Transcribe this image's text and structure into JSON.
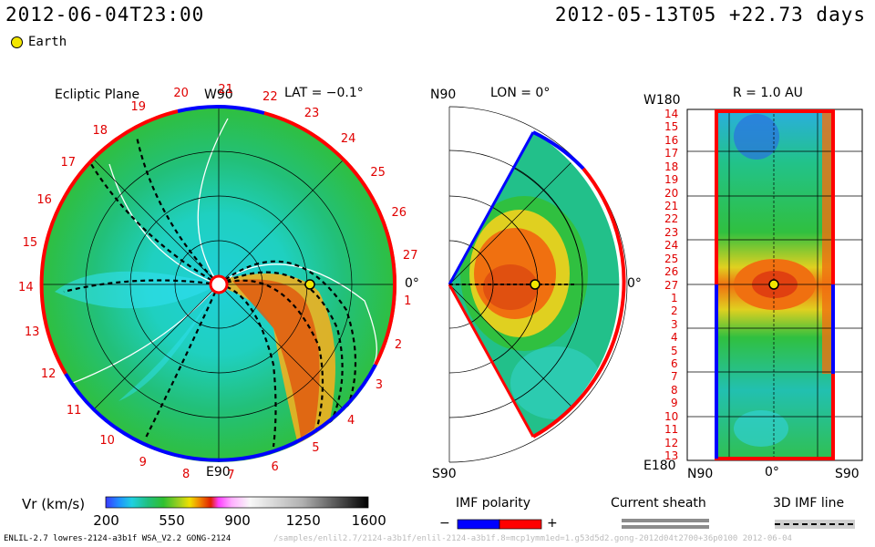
{
  "header": {
    "current_time": "2012-06-04T23:00",
    "reference_time": "2012-05-13T05 +22.73 days"
  },
  "legend": {
    "earth_label": "Earth"
  },
  "ecliptic_panel": {
    "title": "Ecliptic Plane",
    "top_label": "W90",
    "bottom_label": "E90",
    "right_label": "0°",
    "lat_label": "LAT = −0.1°",
    "rim_numbers": [
      "1",
      "2",
      "3",
      "4",
      "5",
      "6",
      "7",
      "8",
      "9",
      "10",
      "11",
      "12",
      "13",
      "14",
      "15",
      "16",
      "17",
      "18",
      "19",
      "20",
      "21",
      "22",
      "23",
      "24",
      "25",
      "26",
      "27"
    ]
  },
  "meridional_panel": {
    "top_label": "N90",
    "bottom_label": "S90",
    "right_label": "0°",
    "lon_label": "LON = 0°"
  },
  "map_panel": {
    "radius_label": "R = 1.0 AU",
    "top_left_label": "W180",
    "bottom_left_label": "E180",
    "bottom_labels": [
      "N90",
      "0°",
      "S90"
    ],
    "y_numbers": [
      "14",
      "15",
      "16",
      "17",
      "18",
      "19",
      "20",
      "21",
      "22",
      "23",
      "24",
      "25",
      "26",
      "27",
      "1",
      "2",
      "3",
      "4",
      "5",
      "6",
      "7",
      "8",
      "9",
      "10",
      "11",
      "12",
      "13"
    ]
  },
  "colorbar": {
    "label": "Vr (km/s)",
    "ticks": [
      "200",
      "550",
      "900",
      "1250",
      "1600"
    ]
  },
  "imf_polarity": {
    "title": "IMF polarity",
    "minus": "−",
    "plus": "+",
    "neg_color": "#0000ff",
    "pos_color": "#ff0000"
  },
  "current_sheath": {
    "title": "Current sheath"
  },
  "imf_line": {
    "title": "3D IMF line"
  },
  "footer": {
    "model_info": "ENLIL-2.7 lowres-2124-a3b1f WSA_V2.2 GONG-2124",
    "path_info": "/samples/enlil2.7/2124-a3b1f/enlil-2124-a3b1f.8=mcp1ymm1ed=1.g53d5d2.gong-2012d04t2700+36p0100     2012-06-04"
  }
}
